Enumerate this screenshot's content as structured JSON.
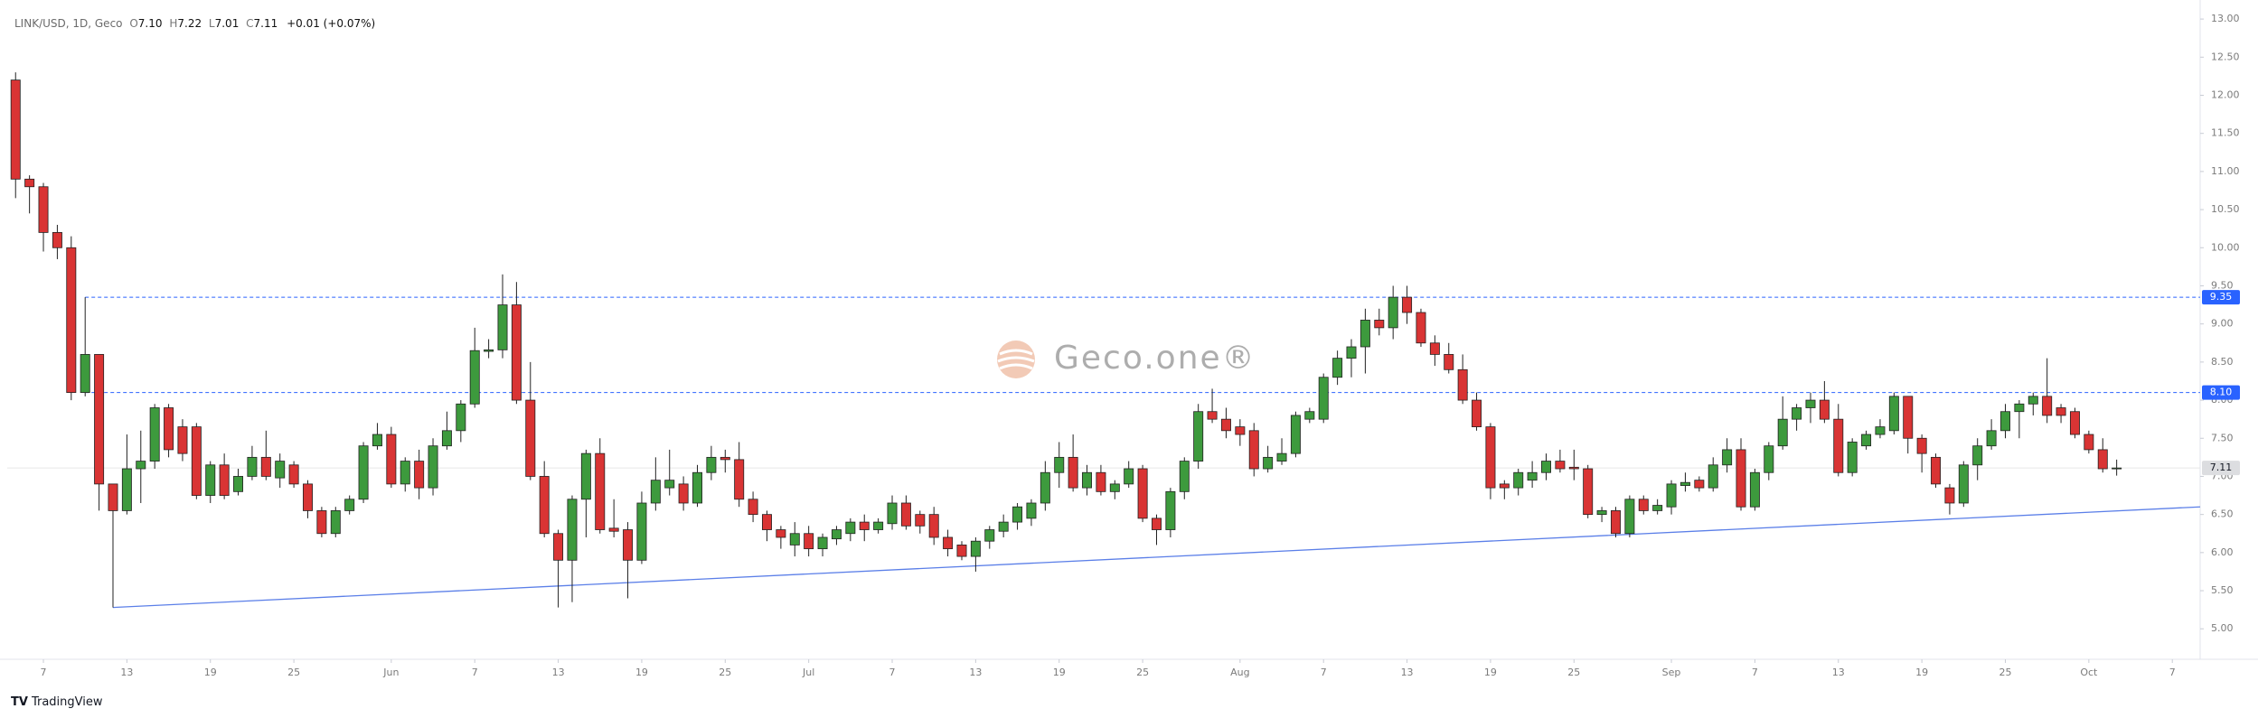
{
  "chart_data": {
    "type": "candlestick",
    "legend": {
      "symbol": "LINK/USD, 1D, Geco",
      "open_label": "O",
      "open": "7.10",
      "high_label": "H",
      "high": "7.22",
      "low_label": "L",
      "low": "7.01",
      "close_label": "C",
      "close": "7.11",
      "change": "+0.01 (+0.07%)"
    },
    "watermark": "Geco.one®",
    "footer": "TradingView",
    "up_color": "#3d9a3d",
    "down_color": "#d93434",
    "open": [
      12.2,
      10.9,
      10.8,
      10.2,
      10.0,
      8.1,
      8.6,
      6.9,
      6.55,
      7.1,
      7.2,
      7.9,
      7.65,
      7.65,
      6.75,
      7.15,
      6.8,
      7.0,
      7.25,
      6.98,
      7.15,
      6.9,
      6.55,
      6.25,
      6.55,
      6.7,
      7.4,
      7.55,
      6.9,
      7.2,
      6.85,
      7.4,
      7.6,
      7.95,
      8.64,
      8.66,
      9.25,
      8.0,
      7.0,
      6.25,
      5.9,
      6.7,
      7.3,
      6.32,
      6.3,
      5.9,
      6.65,
      6.85,
      6.9,
      6.65,
      7.05,
      7.25,
      7.22,
      6.7,
      6.5,
      6.3,
      6.1,
      6.25,
      6.05,
      6.18,
      6.25,
      6.4,
      6.3,
      6.38,
      6.65,
      6.5,
      6.5,
      6.2,
      6.1,
      5.95,
      6.15,
      6.28,
      6.4,
      6.45,
      6.65,
      7.05,
      7.25,
      6.85,
      7.05,
      6.8,
      6.9,
      7.1,
      6.45,
      6.3,
      6.8,
      7.2,
      7.85,
      7.75,
      7.65,
      7.6,
      7.1,
      7.2,
      7.3,
      7.75,
      7.75,
      8.3,
      8.55,
      8.7,
      9.05,
      8.95,
      9.35,
      9.15,
      8.75,
      8.6,
      8.4,
      8.0,
      7.65,
      6.9,
      6.85,
      6.95,
      7.05,
      7.2,
      7.12,
      7.1,
      6.5,
      6.55,
      6.25,
      6.7,
      6.55,
      6.6,
      6.88,
      6.95,
      6.85,
      7.15,
      7.35,
      6.6,
      7.05,
      7.4,
      7.75,
      7.9,
      8.0,
      7.75,
      7.05,
      7.4,
      7.55,
      7.6,
      8.05,
      7.5,
      7.25,
      6.85,
      6.65,
      7.15,
      7.4,
      7.6,
      7.85,
      7.95,
      8.05,
      7.9,
      7.85,
      7.55,
      7.35,
      7.1
    ],
    "high": [
      12.3,
      10.95,
      10.85,
      10.3,
      10.15,
      9.35,
      8.6,
      6.9,
      7.55,
      7.6,
      7.95,
      7.95,
      7.75,
      7.7,
      7.2,
      7.3,
      7.1,
      7.4,
      7.6,
      7.3,
      7.2,
      6.95,
      6.6,
      6.6,
      6.75,
      7.45,
      7.7,
      7.65,
      7.25,
      7.35,
      7.5,
      7.85,
      8.0,
      8.95,
      8.8,
      9.65,
      9.55,
      8.5,
      7.2,
      6.3,
      6.75,
      7.35,
      7.5,
      6.7,
      6.4,
      6.8,
      7.25,
      7.35,
      7.0,
      7.15,
      7.4,
      7.35,
      7.45,
      6.8,
      6.55,
      6.35,
      6.4,
      6.35,
      6.25,
      6.35,
      6.45,
      6.5,
      6.45,
      6.75,
      6.75,
      6.55,
      6.6,
      6.3,
      6.15,
      6.2,
      6.35,
      6.5,
      6.65,
      6.7,
      7.2,
      7.45,
      7.55,
      7.15,
      7.15,
      6.95,
      7.2,
      7.15,
      6.5,
      6.85,
      7.25,
      7.95,
      8.15,
      7.9,
      7.75,
      7.7,
      7.4,
      7.5,
      7.85,
      7.9,
      8.35,
      8.65,
      8.8,
      9.2,
      9.2,
      9.5,
      9.5,
      9.2,
      8.85,
      8.75,
      8.6,
      8.1,
      7.7,
      6.95,
      7.1,
      7.2,
      7.3,
      7.35,
      7.35,
      7.15,
      6.6,
      6.6,
      6.75,
      6.75,
      6.7,
      6.95,
      7.05,
      7.0,
      7.25,
      7.5,
      7.5,
      7.1,
      7.45,
      8.05,
      7.95,
      8.1,
      8.25,
      7.95,
      7.5,
      7.6,
      7.75,
      8.1,
      8.05,
      7.55,
      7.3,
      6.9,
      7.2,
      7.5,
      7.75,
      7.95,
      8.0,
      8.1,
      8.55,
      7.95,
      7.9,
      7.6,
      7.5,
      7.22
    ],
    "low": [
      10.65,
      10.45,
      9.95,
      9.85,
      8.0,
      8.05,
      6.55,
      5.28,
      6.5,
      6.65,
      7.1,
      7.25,
      7.2,
      6.7,
      6.65,
      6.7,
      6.75,
      6.95,
      6.95,
      6.85,
      6.85,
      6.45,
      6.2,
      6.2,
      6.5,
      6.65,
      7.35,
      6.85,
      6.8,
      6.7,
      6.75,
      7.35,
      7.45,
      7.9,
      8.55,
      8.55,
      7.95,
      6.95,
      6.2,
      5.28,
      5.35,
      6.2,
      6.25,
      6.2,
      5.4,
      5.85,
      6.55,
      6.75,
      6.55,
      6.6,
      6.95,
      7.05,
      6.6,
      6.4,
      6.15,
      6.05,
      5.95,
      5.95,
      5.95,
      6.1,
      6.15,
      6.15,
      6.25,
      6.3,
      6.3,
      6.25,
      6.1,
      5.95,
      5.9,
      5.75,
      6.05,
      6.2,
      6.3,
      6.35,
      6.55,
      6.85,
      6.8,
      6.75,
      6.75,
      6.7,
      6.85,
      6.4,
      6.1,
      6.2,
      6.7,
      7.1,
      7.7,
      7.5,
      7.4,
      7.0,
      7.05,
      7.15,
      7.25,
      7.7,
      7.7,
      8.2,
      8.3,
      8.35,
      8.85,
      8.8,
      9.0,
      8.7,
      8.45,
      8.35,
      7.95,
      7.6,
      6.7,
      6.7,
      6.75,
      6.85,
      6.95,
      7.05,
      6.95,
      6.45,
      6.4,
      6.2,
      6.2,
      6.5,
      6.5,
      6.5,
      6.8,
      6.8,
      6.8,
      7.05,
      6.55,
      6.55,
      6.95,
      7.35,
      7.6,
      7.7,
      7.7,
      7.0,
      7.0,
      7.35,
      7.5,
      7.55,
      7.3,
      7.05,
      6.85,
      6.5,
      6.6,
      6.95,
      7.35,
      7.5,
      7.5,
      7.8,
      7.7,
      7.7,
      7.5,
      7.3,
      7.05,
      7.01
    ],
    "close": [
      10.9,
      10.8,
      10.2,
      10.0,
      8.1,
      8.6,
      6.9,
      6.55,
      7.1,
      7.2,
      7.9,
      7.35,
      7.3,
      6.75,
      7.15,
      6.75,
      7.0,
      7.25,
      7.0,
      7.2,
      6.9,
      6.55,
      6.25,
      6.55,
      6.7,
      7.4,
      7.55,
      6.9,
      7.2,
      6.85,
      7.4,
      7.6,
      7.95,
      8.65,
      8.66,
      9.25,
      8.0,
      7.0,
      6.25,
      5.9,
      6.7,
      7.3,
      6.3,
      6.28,
      5.9,
      6.65,
      6.95,
      6.95,
      6.65,
      7.05,
      7.25,
      7.22,
      6.7,
      6.5,
      6.3,
      6.2,
      6.25,
      6.05,
      6.2,
      6.3,
      6.4,
      6.3,
      6.4,
      6.65,
      6.35,
      6.35,
      6.2,
      6.05,
      5.95,
      6.15,
      6.3,
      6.4,
      6.6,
      6.65,
      7.05,
      7.25,
      6.85,
      7.05,
      6.8,
      6.9,
      7.1,
      6.45,
      6.3,
      6.8,
      7.2,
      7.85,
      7.75,
      7.6,
      7.55,
      7.1,
      7.25,
      7.3,
      7.8,
      7.85,
      8.3,
      8.55,
      8.7,
      9.05,
      8.95,
      9.35,
      9.15,
      8.75,
      8.6,
      8.4,
      8.0,
      7.65,
      6.85,
      6.85,
      7.05,
      7.05,
      7.2,
      7.1,
      7.1,
      6.5,
      6.55,
      6.25,
      6.7,
      6.55,
      6.62,
      6.9,
      6.92,
      6.85,
      7.15,
      7.35,
      6.6,
      7.05,
      7.4,
      7.75,
      7.9,
      8.0,
      7.75,
      7.05,
      7.45,
      7.55,
      7.65,
      8.05,
      7.5,
      7.3,
      6.9,
      6.65,
      7.15,
      7.4,
      7.6,
      7.85,
      7.95,
      8.05,
      7.8,
      7.8,
      7.55,
      7.35,
      7.1,
      7.11
    ],
    "xlim": [
      -0.6,
      157
    ],
    "xticks": [
      {
        "value": 2,
        "label": "7"
      },
      {
        "value": 8,
        "label": "13"
      },
      {
        "value": 14,
        "label": "19"
      },
      {
        "value": 20,
        "label": "25"
      },
      {
        "value": 27,
        "label": "Jun"
      },
      {
        "value": 33,
        "label": "7"
      },
      {
        "value": 39,
        "label": "13"
      },
      {
        "value": 45,
        "label": "19"
      },
      {
        "value": 51,
        "label": "25"
      },
      {
        "value": 57,
        "label": "Jul"
      },
      {
        "value": 63,
        "label": "7"
      },
      {
        "value": 69,
        "label": "13"
      },
      {
        "value": 75,
        "label": "19"
      },
      {
        "value": 81,
        "label": "25"
      },
      {
        "value": 88,
        "label": "Aug"
      },
      {
        "value": 94,
        "label": "7"
      },
      {
        "value": 100,
        "label": "13"
      },
      {
        "value": 106,
        "label": "19"
      },
      {
        "value": 112,
        "label": "25"
      },
      {
        "value": 119,
        "label": "Sep"
      },
      {
        "value": 125,
        "label": "7"
      },
      {
        "value": 131,
        "label": "13"
      },
      {
        "value": 137,
        "label": "19"
      },
      {
        "value": 143,
        "label": "25"
      },
      {
        "value": 149,
        "label": "Oct"
      },
      {
        "value": 155,
        "label": "7"
      }
    ],
    "ylim": [
      4.6,
      13.25
    ],
    "yticks": [
      {
        "value": 5,
        "label": "5.00"
      },
      {
        "value": 5.5,
        "label": "5.50"
      },
      {
        "value": 6,
        "label": "6.00"
      },
      {
        "value": 6.5,
        "label": "6.50"
      },
      {
        "value": 7,
        "label": "7.00"
      },
      {
        "value": 7.5,
        "label": "7.50"
      },
      {
        "value": 8,
        "label": "8.00"
      },
      {
        "value": 8.5,
        "label": "8.50"
      },
      {
        "value": 9,
        "label": "9.00"
      },
      {
        "value": 9.5,
        "label": "9.50"
      },
      {
        "value": 10,
        "label": "10.00"
      },
      {
        "value": 10.5,
        "label": "10.50"
      },
      {
        "value": 11,
        "label": "11.00"
      },
      {
        "value": 11.5,
        "label": "11.50"
      },
      {
        "value": 12,
        "label": "12.00"
      },
      {
        "value": 12.5,
        "label": "12.50"
      },
      {
        "value": 13,
        "label": "13.00"
      }
    ],
    "hlines": [
      {
        "value": 9.35,
        "label": "9.35",
        "x_start": 5,
        "color": "#2962ff"
      },
      {
        "value": 8.1,
        "label": "8.10",
        "x_start": 5,
        "color": "#2962ff"
      }
    ],
    "last_price": {
      "value": 7.11,
      "label": "7.11"
    },
    "trendline": {
      "x": [
        7,
        157
      ],
      "y": [
        5.28,
        6.6
      ],
      "color": "#5b7fe8"
    },
    "grid": false
  }
}
